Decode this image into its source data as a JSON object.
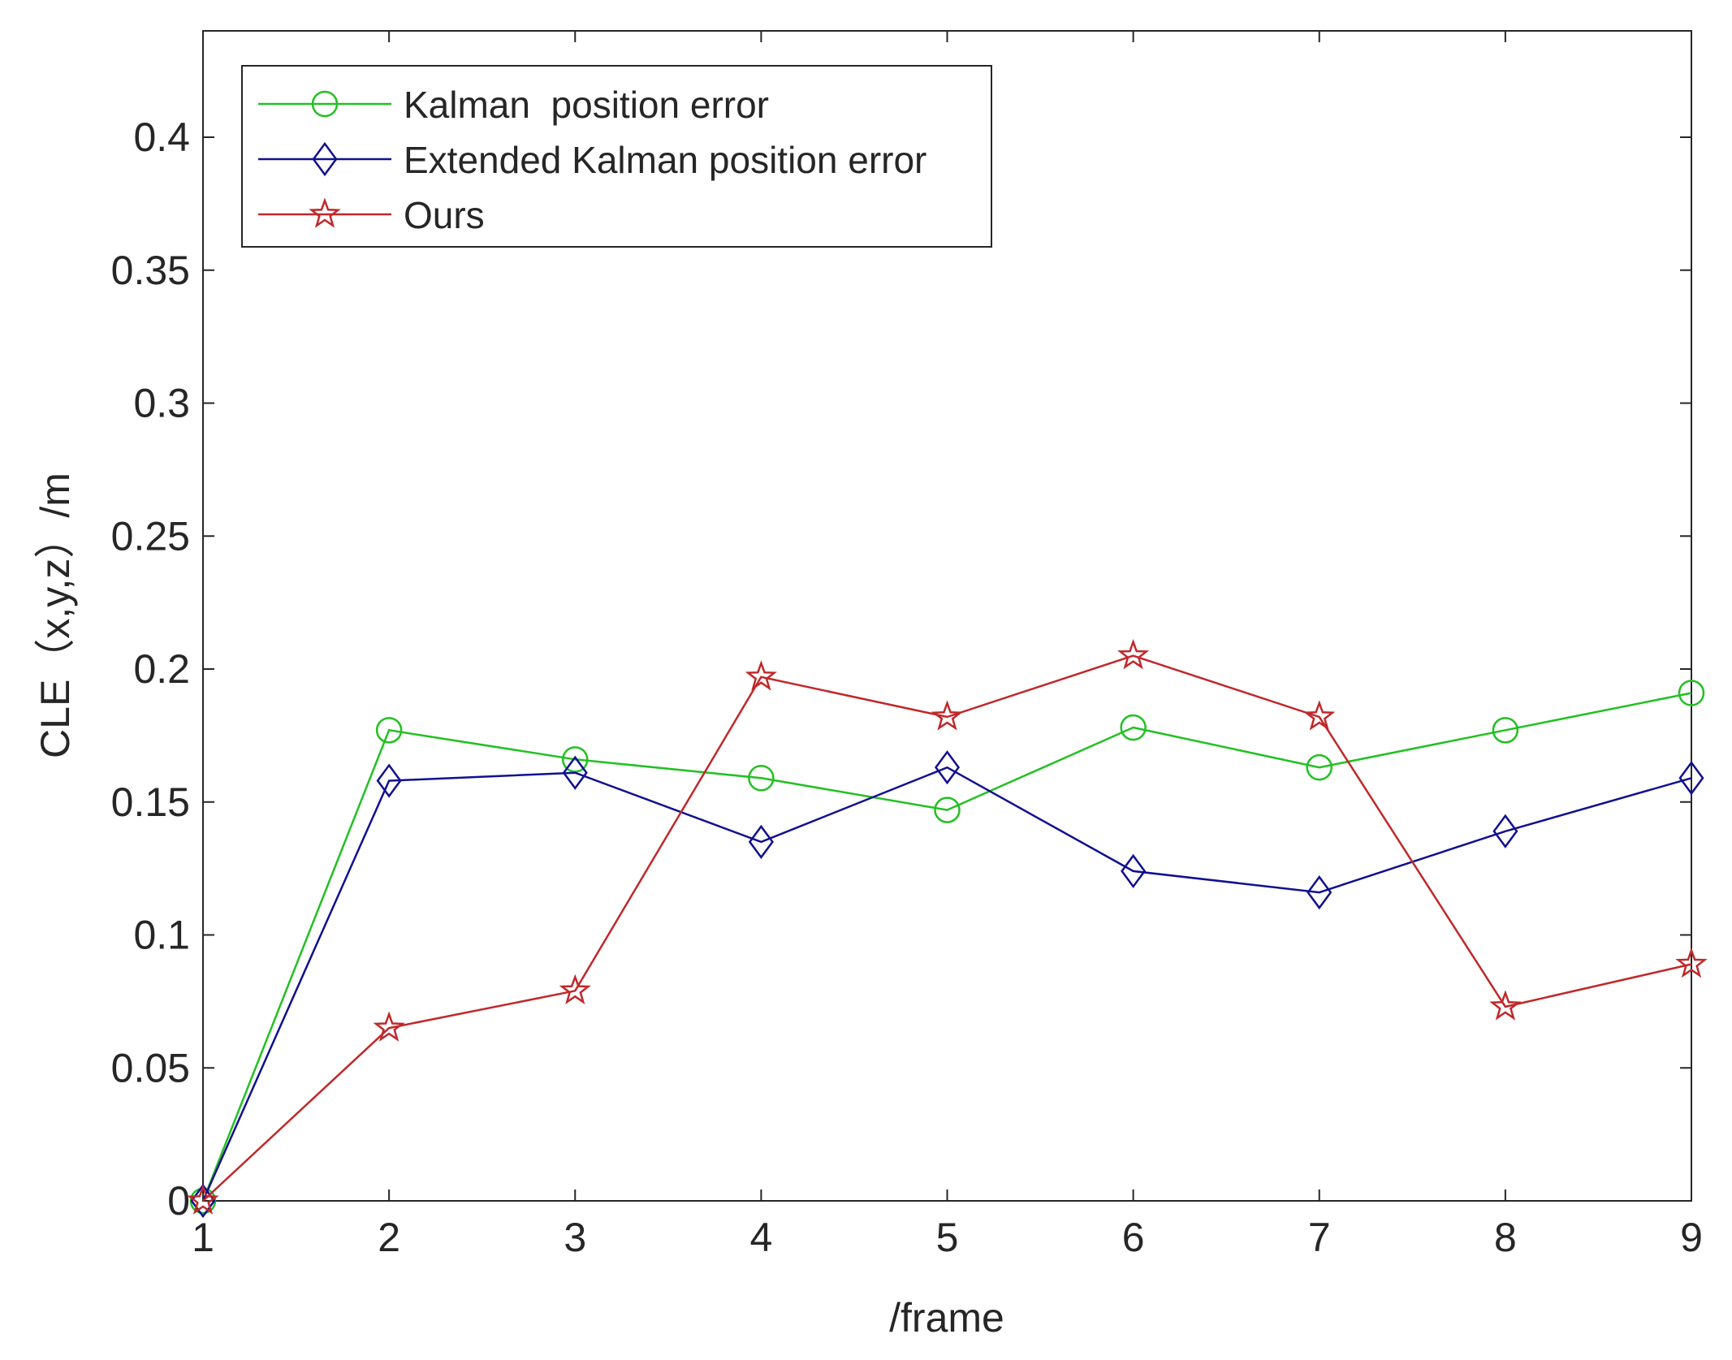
{
  "chart_data": {
    "type": "line",
    "title": "",
    "xlabel": "/frame",
    "ylabel": "CLE（x,y,z）/m",
    "x": [
      1,
      2,
      3,
      4,
      5,
      6,
      7,
      8,
      9
    ],
    "xlim": [
      1,
      9
    ],
    "ylim": [
      0,
      0.44
    ],
    "xticks": [
      1,
      2,
      3,
      4,
      5,
      6,
      7,
      8,
      9
    ],
    "yticks": [
      0,
      0.05,
      0.1,
      0.15,
      0.2,
      0.25,
      0.3,
      0.35,
      0.4
    ],
    "ytick_labels": [
      "0",
      "0.05",
      "0.1",
      "0.15",
      "0.2",
      "0.25",
      "0.3",
      "0.35",
      "0.4"
    ],
    "grid": false,
    "legend_position": "top-left",
    "series": [
      {
        "name": "Kalman  position error",
        "color": "#22c022",
        "marker": "circle",
        "values": [
          0,
          0.177,
          0.166,
          0.159,
          0.147,
          0.178,
          0.163,
          0.177,
          0.191
        ]
      },
      {
        "name": "Extended Kalman position error",
        "color": "#101090",
        "marker": "diamond",
        "values": [
          0,
          0.158,
          0.161,
          0.135,
          0.163,
          0.124,
          0.116,
          0.139,
          0.159
        ]
      },
      {
        "name": "Ours",
        "color": "#c0282a",
        "marker": "star",
        "values": [
          0,
          0.065,
          0.079,
          0.197,
          0.182,
          0.205,
          0.182,
          0.073,
          0.089
        ]
      }
    ]
  }
}
